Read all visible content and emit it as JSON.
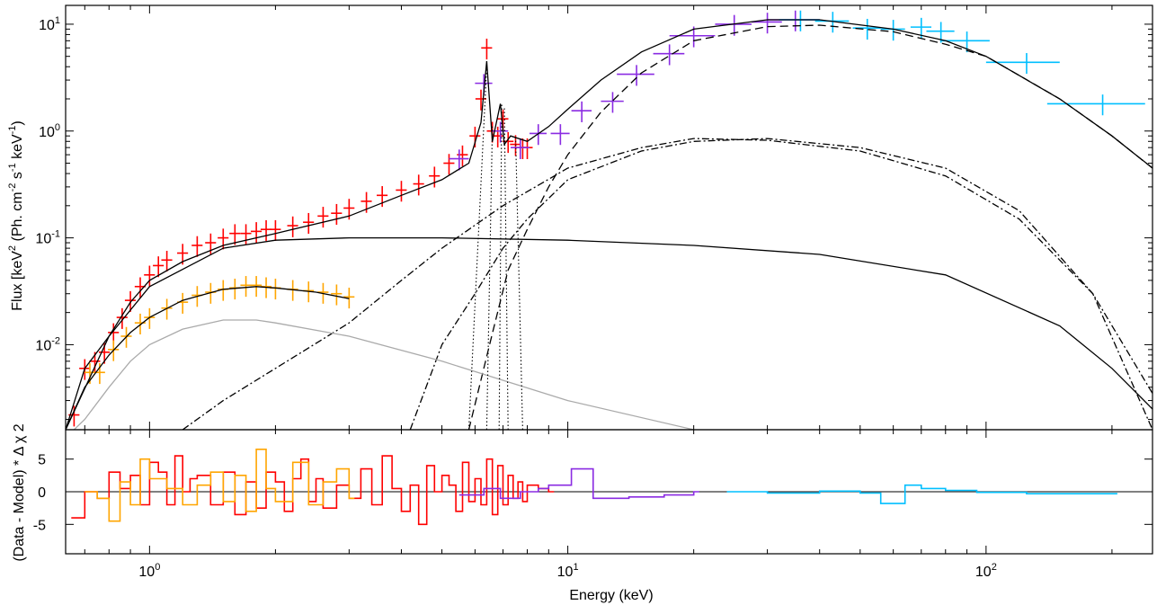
{
  "chart_data": [
    {
      "type": "line",
      "panel": "spectrum",
      "xlabel": "Energy (keV)",
      "ylabel_parts": [
        "Flux [keV",
        "2",
        " (Ph. cm",
        "-2",
        " s",
        "-1",
        " keV",
        "-1",
        ")"
      ],
      "x_scale": "log",
      "y_scale": "log",
      "xlim": [
        0.63,
        250
      ],
      "ylim": [
        0.0016,
        15
      ],
      "y_ticks": [
        {
          "value": 0.01,
          "mantissa": "10",
          "exp": "-2"
        },
        {
          "value": 0.1,
          "mantissa": "10",
          "exp": "-1"
        },
        {
          "value": 1,
          "mantissa": "10",
          "exp": "0"
        },
        {
          "value": 10,
          "mantissa": "10",
          "exp": "1"
        }
      ],
      "series": [
        {
          "color": "#ff0000",
          "kind": "data",
          "x": [
            0.66,
            0.7,
            0.74,
            0.78,
            0.82,
            0.86,
            0.9,
            0.95,
            1.0,
            1.05,
            1.1,
            1.2,
            1.3,
            1.4,
            1.5,
            1.6,
            1.7,
            1.8,
            1.9,
            2.0,
            2.2,
            2.4,
            2.6,
            2.8,
            3.0,
            3.3,
            3.6,
            4.0,
            4.4,
            4.8,
            5.2,
            5.6,
            6.0,
            6.2,
            6.4,
            6.6,
            6.8,
            7.0,
            7.2,
            7.5,
            7.8,
            8.0
          ],
          "y": [
            0.0022,
            0.006,
            0.007,
            0.0085,
            0.013,
            0.018,
            0.026,
            0.035,
            0.045,
            0.055,
            0.062,
            0.072,
            0.085,
            0.09,
            0.1,
            0.11,
            0.11,
            0.115,
            0.12,
            0.12,
            0.13,
            0.14,
            0.16,
            0.17,
            0.19,
            0.22,
            0.25,
            0.28,
            0.32,
            0.38,
            0.5,
            0.6,
            0.9,
            2.0,
            6.0,
            1.0,
            0.9,
            1.3,
            0.8,
            0.75,
            0.7,
            0.7
          ]
        },
        {
          "color": "#ffa500",
          "kind": "data",
          "x": [
            0.72,
            0.76,
            0.82,
            0.88,
            0.95,
            1.0,
            1.1,
            1.2,
            1.3,
            1.4,
            1.5,
            1.6,
            1.7,
            1.8,
            1.9,
            2.0,
            2.2,
            2.4,
            2.6,
            2.8,
            3.0
          ],
          "y": [
            0.0055,
            0.0055,
            0.009,
            0.012,
            0.016,
            0.018,
            0.022,
            0.025,
            0.029,
            0.031,
            0.033,
            0.034,
            0.036,
            0.036,
            0.035,
            0.034,
            0.033,
            0.032,
            0.031,
            0.03,
            0.028
          ]
        },
        {
          "color": "#8a2be2",
          "kind": "data",
          "x": [
            5.5,
            6.3,
            6.9,
            7.7,
            8.5,
            9.6,
            10.8,
            12.8,
            14.6,
            17.5,
            20.0,
            25.0,
            30.0,
            35.0
          ],
          "y": [
            0.55,
            2.8,
            1.0,
            0.7,
            0.95,
            0.95,
            1.55,
            1.9,
            3.4,
            5.3,
            7.8,
            10.0,
            10.5,
            11.0
          ],
          "xerr": [
            0.3,
            0.3,
            0.3,
            0.4,
            0.4,
            0.5,
            0.6,
            0.8,
            1.5,
            1.5,
            2.5,
            2.5,
            2.5,
            5.0
          ]
        },
        {
          "color": "#00bfff",
          "kind": "data",
          "x": [
            36,
            43,
            52,
            60,
            70,
            78,
            90,
            125,
            190
          ],
          "y": [
            11.0,
            10.7,
            9.2,
            9.0,
            9.4,
            8.6,
            7.0,
            4.4,
            1.8
          ],
          "xerr": [
            4,
            4,
            4,
            4,
            4,
            6,
            12,
            25,
            50
          ]
        },
        {
          "color": "#000000",
          "kind": "model",
          "style": "solid",
          "x": [
            0.63,
            0.7,
            0.8,
            0.9,
            1.0,
            1.2,
            1.5,
            2.0,
            3.0,
            4.0,
            5.0,
            5.8,
            6.2,
            6.4,
            6.6,
            6.9,
            7.05,
            7.3,
            8.0,
            9.0,
            10.0,
            12.0,
            15.0,
            20.0,
            30.0,
            40.0,
            60.0,
            80.0,
            100.0,
            150.0,
            200.0,
            250.0
          ],
          "y": [
            0.0016,
            0.006,
            0.012,
            0.025,
            0.04,
            0.06,
            0.085,
            0.11,
            0.16,
            0.25,
            0.35,
            0.5,
            1.2,
            4.5,
            0.8,
            1.8,
            0.75,
            0.9,
            0.8,
            1.1,
            1.6,
            3.0,
            5.5,
            9.0,
            11.0,
            11.0,
            9.0,
            7.0,
            5.0,
            2.0,
            0.9,
            0.45
          ]
        },
        {
          "color": "#000000",
          "kind": "model",
          "style": "solid",
          "x": [
            0.63,
            0.7,
            0.8,
            0.9,
            1.0,
            1.2,
            1.5,
            1.8,
            2.0,
            2.5,
            3.0
          ],
          "y": [
            0.0016,
            0.004,
            0.008,
            0.013,
            0.018,
            0.026,
            0.033,
            0.035,
            0.034,
            0.031,
            0.027
          ]
        },
        {
          "color": "#000000",
          "kind": "model",
          "style": "solid",
          "x": [
            0.63,
            0.8,
            1.0,
            1.5,
            2.0,
            3.0,
            5.0,
            10.0,
            20.0,
            40.0,
            80.0,
            150.0,
            200.0,
            250.0
          ],
          "y": [
            0.0016,
            0.012,
            0.035,
            0.08,
            0.095,
            0.1,
            0.1,
            0.095,
            0.085,
            0.07,
            0.045,
            0.015,
            0.006,
            0.0025
          ]
        },
        {
          "color": "#000000",
          "kind": "model",
          "style": "dashed",
          "x": [
            5.8,
            6.5,
            7.2,
            8.0,
            9.0,
            10.0,
            12.0,
            15.0,
            20.0,
            30.0,
            40.0,
            60.0,
            80.0,
            100.0,
            150.0,
            200.0,
            250.0
          ],
          "y": [
            0.0016,
            0.01,
            0.05,
            0.12,
            0.3,
            0.6,
            1.5,
            3.5,
            7.0,
            9.5,
            9.8,
            8.5,
            6.5,
            5.0,
            2.0,
            0.9,
            0.45
          ]
        },
        {
          "color": "#000000",
          "kind": "model",
          "style": "dashdot",
          "x": [
            1.2,
            1.5,
            2.0,
            3.0,
            4.0,
            5.0,
            7.0,
            10.0,
            15.0,
            20.0,
            30.0,
            50.0,
            80.0,
            120.0,
            180.0,
            250.0
          ],
          "y": [
            0.0016,
            0.003,
            0.006,
            0.016,
            0.04,
            0.08,
            0.2,
            0.45,
            0.7,
            0.85,
            0.82,
            0.65,
            0.38,
            0.15,
            0.03,
            0.0035
          ]
        },
        {
          "color": "#000000",
          "kind": "model",
          "style": "dashdot",
          "x": [
            4.2,
            5.0,
            6.0,
            7.0,
            8.0,
            10.0,
            15.0,
            20.0,
            30.0,
            50.0,
            80.0,
            120.0,
            180.0,
            250.0
          ],
          "y": [
            0.0016,
            0.01,
            0.03,
            0.08,
            0.15,
            0.35,
            0.65,
            0.8,
            0.85,
            0.7,
            0.45,
            0.18,
            0.03,
            0.0016
          ]
        },
        {
          "color": "#aaaaaa",
          "kind": "model",
          "style": "solid",
          "x": [
            0.66,
            0.7,
            0.8,
            0.9,
            1.0,
            1.2,
            1.5,
            1.8,
            2.0,
            3.0,
            5.0,
            10.0,
            20.0
          ],
          "y": [
            0.0016,
            0.002,
            0.004,
            0.007,
            0.01,
            0.014,
            0.017,
            0.017,
            0.016,
            0.012,
            0.007,
            0.003,
            0.0016
          ]
        },
        {
          "color": "#000000",
          "kind": "line_component",
          "style": "dotted",
          "lines": [
            {
              "center": 6.4,
              "peak": 4.0,
              "base": 5.8
            },
            {
              "center": 6.6,
              "peak": 1.1,
              "base": 6.4
            },
            {
              "center": 6.95,
              "peak": 1.8,
              "base": 6.85
            },
            {
              "center": 7.05,
              "peak": 1.7,
              "base": 7.2
            },
            {
              "center": 7.5,
              "peak": 0.9,
              "base": 7.8
            }
          ]
        }
      ]
    },
    {
      "type": "line",
      "panel": "residuals",
      "xlabel": "Energy (keV)",
      "ylabel": "(Data - Model) * Δ χ 2",
      "x_scale": "log",
      "xlim": [
        0.63,
        250
      ],
      "ylim": [
        -9.5,
        9.5
      ],
      "y_ticks": [
        -5,
        0,
        5
      ],
      "y_tick_labels": [
        "-5",
        "0",
        "5"
      ],
      "x_ticks": [
        {
          "value": 1,
          "mantissa": "10",
          "exp": "0"
        },
        {
          "value": 10,
          "mantissa": "10",
          "exp": "1"
        },
        {
          "value": 100,
          "mantissa": "10",
          "exp": "2"
        }
      ],
      "series": [
        {
          "color": "#ff0000",
          "x": [
            0.65,
            0.7,
            0.75,
            0.8,
            0.85,
            0.9,
            0.95,
            1.0,
            1.05,
            1.1,
            1.15,
            1.2,
            1.25,
            1.3,
            1.4,
            1.5,
            1.6,
            1.7,
            1.8,
            1.9,
            2.0,
            2.1,
            2.2,
            2.3,
            2.4,
            2.5,
            2.6,
            2.8,
            3.0,
            3.2,
            3.4,
            3.6,
            3.8,
            4.0,
            4.2,
            4.4,
            4.6,
            4.8,
            5.0,
            5.2,
            5.4,
            5.6,
            5.8,
            6.0,
            6.2,
            6.4,
            6.6,
            6.8,
            7.0,
            7.2,
            7.4,
            7.6,
            7.8,
            8.0,
            8.5,
            9.0
          ],
          "y": [
            -4.0,
            0.0,
            -1.0,
            3.0,
            0.5,
            2.5,
            -2.0,
            4.5,
            3.0,
            -2.0,
            5.5,
            0.0,
            2.0,
            2.5,
            -2.0,
            3.0,
            -3.5,
            1.5,
            -2.5,
            3.0,
            1.5,
            -3.0,
            2.0,
            5.0,
            -1.5,
            2.0,
            -2.5,
            1.0,
            -1.0,
            3.5,
            -2.0,
            5.5,
            0.5,
            -3.0,
            1.0,
            -5.0,
            4.0,
            0.0,
            2.5,
            1.0,
            -3.0,
            4.5,
            -1.5,
            2.0,
            -2.0,
            5.0,
            -3.5,
            4.0,
            -2.0,
            2.5,
            -1.0,
            1.5,
            -1.5,
            1.0,
            0.5,
            0.0
          ]
        },
        {
          "color": "#ffa500",
          "x": [
            0.7,
            0.75,
            0.8,
            0.85,
            0.9,
            0.95,
            1.0,
            1.1,
            1.2,
            1.3,
            1.4,
            1.5,
            1.6,
            1.7,
            1.8,
            1.9,
            2.0,
            2.2,
            2.4,
            2.6,
            2.8,
            3.0
          ],
          "y": [
            0.0,
            -1.0,
            -4.5,
            1.5,
            -2.0,
            5.0,
            2.0,
            0.5,
            -2.0,
            1.0,
            3.0,
            -1.5,
            2.5,
            -3.0,
            6.5,
            0.5,
            -1.5,
            4.5,
            -2.0,
            1.5,
            3.5,
            -1.0
          ]
        },
        {
          "color": "#8a2be2",
          "x": [
            5.5,
            6.3,
            6.9,
            7.7,
            8.5,
            9.0,
            10.2,
            11.5,
            14.0,
            17.0,
            20.0
          ],
          "y": [
            -0.5,
            0.5,
            -1.0,
            0.0,
            0.5,
            1.0,
            3.5,
            -1.0,
            -0.8,
            -0.5,
            0.0
          ]
        },
        {
          "color": "#00bfff",
          "x": [
            24.0,
            30.0,
            40.0,
            50.0,
            56.0,
            64.0,
            70.0,
            80.0,
            95.0,
            125.0,
            190.0,
            200.0
          ],
          "y": [
            0.0,
            -0.2,
            0.1,
            -0.2,
            -1.8,
            1.0,
            0.5,
            0.2,
            -0.1,
            -0.3,
            -0.3,
            -0.3
          ]
        }
      ]
    }
  ]
}
